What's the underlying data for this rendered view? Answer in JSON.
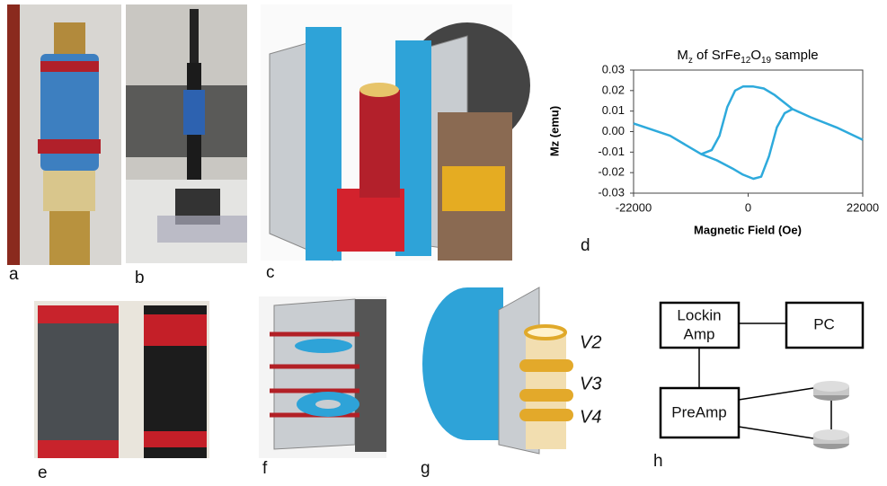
{
  "panel_labels": [
    "a",
    "b",
    "c",
    "d",
    "e",
    "f",
    "g",
    "h"
  ],
  "panel_g": {
    "coil_labels": [
      "V2",
      "V3",
      "V4"
    ]
  },
  "panel_h": {
    "lockin": [
      "Lockin",
      "Amp"
    ],
    "pc": "PC",
    "preamp": "PreAmp"
  },
  "chart_data": {
    "type": "line",
    "title": [
      {
        "text": "M"
      },
      {
        "text": "z",
        "sub": true
      },
      {
        "text": " of SrFe"
      },
      {
        "text": "12",
        "sub": true
      },
      {
        "text": "O"
      },
      {
        "text": "19",
        "sub": true
      },
      {
        "text": " sample"
      }
    ],
    "xlabel": "Magnetic Field (Oe)",
    "ylabel": "Mz (emu)",
    "xlim": [
      -22000,
      22000
    ],
    "xticks": [
      -22000,
      0,
      22000
    ],
    "ylim": [
      -0.03,
      0.03
    ],
    "yticks": [
      0.03,
      0.02,
      0.01,
      {
        "value": 0,
        "label": "0.00"
      },
      -0.01,
      -0.02,
      -0.03
    ],
    "series": [
      {
        "color": "#2eaadc",
        "x": [
          -22000,
          -15000,
          -9000,
          -7000,
          -5500,
          -4000,
          -2500,
          -1000,
          1000,
          3000,
          5000,
          7000,
          8500,
          12000,
          17000,
          22000
        ],
        "values": [
          0.004,
          -0.002,
          -0.011,
          -0.009,
          -0.002,
          0.012,
          0.02,
          0.022,
          0.022,
          0.021,
          0.018,
          0.014,
          0.011,
          0.007,
          0.002,
          -0.004
        ]
      },
      {
        "color": "#2eaadc",
        "x": [
          -9000,
          -6000,
          -3000,
          -1000,
          1000,
          2500,
          4000,
          5500,
          7000,
          8500
        ],
        "values": [
          -0.011,
          -0.014,
          -0.018,
          -0.021,
          -0.023,
          -0.022,
          -0.012,
          0.002,
          0.009,
          0.011
        ]
      }
    ]
  }
}
